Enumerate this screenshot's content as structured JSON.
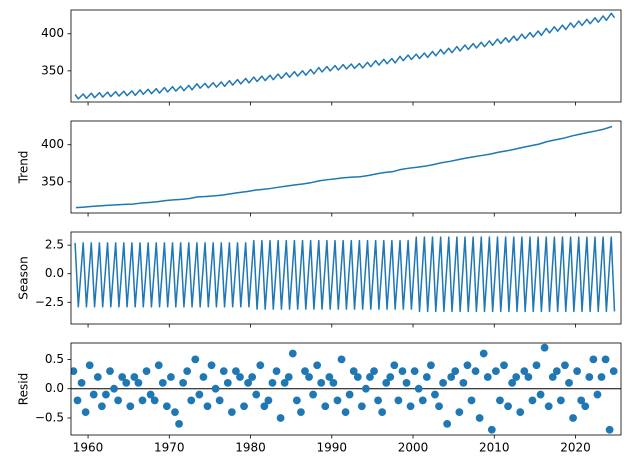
{
  "chart_data": [
    {
      "type": "line",
      "color": "#1f77b4",
      "xlim": [
        1957.9,
        2025.6
      ],
      "ylim": [
        308,
        432
      ],
      "yticks": [
        350,
        400
      ],
      "x": [
        1958.4,
        1958.8,
        1959.4,
        1959.8,
        1960.4,
        1960.8,
        1961.4,
        1961.8,
        1962.4,
        1962.8,
        1963.4,
        1963.8,
        1964.4,
        1964.8,
        1965.4,
        1965.8,
        1966.4,
        1966.8,
        1967.4,
        1967.8,
        1968.4,
        1968.8,
        1969.4,
        1969.8,
        1970.4,
        1970.8,
        1971.4,
        1971.8,
        1972.4,
        1972.8,
        1973.4,
        1973.8,
        1974.4,
        1974.8,
        1975.4,
        1975.8,
        1976.4,
        1976.8,
        1977.4,
        1977.8,
        1978.4,
        1978.8,
        1979.4,
        1979.8,
        1980.4,
        1980.8,
        1981.4,
        1981.8,
        1982.4,
        1982.8,
        1983.4,
        1983.8,
        1984.4,
        1984.8,
        1985.4,
        1985.8,
        1986.4,
        1986.8,
        1987.4,
        1987.8,
        1988.4,
        1988.8,
        1989.4,
        1989.8,
        1990.4,
        1990.8,
        1991.4,
        1991.8,
        1992.4,
        1992.8,
        1993.4,
        1993.8,
        1994.4,
        1994.8,
        1995.4,
        1995.8,
        1996.4,
        1996.8,
        1997.4,
        1997.8,
        1998.4,
        1998.8,
        1999.4,
        1999.8,
        2000.4,
        2000.8,
        2001.4,
        2001.8,
        2002.4,
        2002.8,
        2003.4,
        2003.8,
        2004.4,
        2004.8,
        2005.4,
        2005.8,
        2006.4,
        2006.8,
        2007.4,
        2007.8,
        2008.4,
        2008.8,
        2009.4,
        2009.8,
        2010.4,
        2010.8,
        2011.4,
        2011.8,
        2012.4,
        2012.8,
        2013.4,
        2013.8,
        2014.4,
        2014.8,
        2015.4,
        2015.8,
        2016.4,
        2016.8,
        2017.4,
        2017.8,
        2018.4,
        2018.8,
        2019.4,
        2019.8,
        2020.4,
        2020.8,
        2021.4,
        2021.8,
        2022.4,
        2022.8,
        2023.4,
        2023.8,
        2024.4,
        2024.8
      ],
      "values": [
        318.1,
        312.2,
        318.8,
        312.9,
        319.8,
        313.9,
        320.5,
        314.6,
        321.3,
        315.4,
        321.9,
        316.0,
        322.5,
        316.6,
        322.9,
        317.0,
        324.3,
        318.4,
        325.1,
        319.2,
        326.0,
        320.1,
        327.5,
        321.6,
        328.6,
        322.7,
        329.2,
        323.3,
        330.4,
        324.5,
        332.6,
        326.7,
        333.1,
        327.2,
        334.0,
        328.1,
        335.0,
        329.1,
        336.7,
        330.8,
        338.3,
        332.4,
        339.7,
        333.8,
        341.6,
        335.7,
        342.8,
        336.9,
        344.0,
        338.1,
        345.7,
        339.8,
        347.3,
        341.4,
        348.8,
        342.9,
        350.1,
        344.2,
        351.9,
        346.0,
        354.4,
        348.5,
        355.8,
        349.9,
        357.1,
        351.2,
        358.4,
        352.5,
        359.2,
        353.3,
        359.8,
        353.9,
        361.5,
        355.6,
        363.7,
        357.8,
        365.5,
        359.6,
        366.6,
        360.7,
        369.6,
        363.7,
        371.3,
        365.4,
        372.5,
        366.6,
        374.0,
        368.1,
        376.1,
        370.2,
        378.7,
        372.8,
        380.4,
        374.5,
        382.7,
        376.8,
        384.8,
        378.9,
        386.7,
        380.8,
        388.5,
        382.6,
        390.3,
        384.4,
        392.8,
        386.9,
        394.6,
        388.7,
        396.8,
        390.9,
        399.4,
        393.5,
        401.5,
        395.6,
        403.7,
        397.8,
        407.1,
        401.2,
        409.4,
        403.5,
        411.6,
        405.7,
        414.6,
        408.7,
        417.1,
        411.2,
        419.4,
        413.5,
        421.5,
        415.6,
        424.0,
        418.1,
        427.5,
        421.6
      ]
    },
    {
      "type": "line",
      "ylabel": "Trend",
      "color": "#1f77b4",
      "xlim": [
        1957.9,
        2025.6
      ],
      "ylim": [
        308,
        432
      ],
      "yticks": [
        350,
        400
      ],
      "x": [
        1958.5,
        1959.5,
        1960.5,
        1961.5,
        1962.5,
        1963.5,
        1964.5,
        1965.5,
        1966.5,
        1967.5,
        1968.5,
        1969.5,
        1970.5,
        1971.5,
        1972.5,
        1973.5,
        1974.5,
        1975.5,
        1976.5,
        1977.5,
        1978.5,
        1979.5,
        1980.5,
        1981.5,
        1982.5,
        1983.5,
        1984.5,
        1985.5,
        1986.5,
        1987.5,
        1988.5,
        1989.5,
        1990.5,
        1991.5,
        1992.5,
        1993.5,
        1994.5,
        1995.5,
        1996.5,
        1997.5,
        1998.5,
        1999.5,
        2000.5,
        2001.5,
        2002.5,
        2003.5,
        2004.5,
        2005.5,
        2006.5,
        2007.5,
        2008.5,
        2009.5,
        2010.5,
        2011.5,
        2012.5,
        2013.5,
        2014.5,
        2015.5,
        2016.5,
        2017.5,
        2018.5,
        2019.5,
        2020.5,
        2021.5,
        2022.5,
        2023.5,
        2024.5
      ],
      "values": [
        315.2,
        315.9,
        316.9,
        317.6,
        318.4,
        319.0,
        319.6,
        320.0,
        321.4,
        322.2,
        323.1,
        324.6,
        325.7,
        326.3,
        327.5,
        329.7,
        330.2,
        331.1,
        332.1,
        333.8,
        335.4,
        336.8,
        338.7,
        339.9,
        341.1,
        342.8,
        344.4,
        345.9,
        347.2,
        349.0,
        351.5,
        352.9,
        354.2,
        355.5,
        356.3,
        356.9,
        358.6,
        360.8,
        362.6,
        363.7,
        366.7,
        368.4,
        369.6,
        371.1,
        373.2,
        375.8,
        377.5,
        379.8,
        381.9,
        383.8,
        385.6,
        387.4,
        389.9,
        391.7,
        393.9,
        396.5,
        398.6,
        400.8,
        404.2,
        406.5,
        408.7,
        411.7,
        414.2,
        416.5,
        418.6,
        421.1,
        424.6
      ]
    },
    {
      "type": "line",
      "ylabel": "Season",
      "color": "#1f77b4",
      "xlim": [
        1957.9,
        2025.6
      ],
      "ylim": [
        -4.4,
        3.65
      ],
      "yticks": [
        {
          "value": -2.5,
          "label": "−2.5"
        },
        {
          "value": 0,
          "label": "0.0"
        },
        2.5
      ],
      "x": [
        1958.4,
        1958.8,
        1959.4,
        1959.8,
        1960.4,
        1960.8,
        1961.4,
        1961.8,
        1962.4,
        1962.8,
        1963.4,
        1963.8,
        1964.4,
        1964.8,
        1965.4,
        1965.8,
        1966.4,
        1966.8,
        1967.4,
        1967.8,
        1968.4,
        1968.8,
        1969.4,
        1969.8,
        1970.4,
        1970.8,
        1971.4,
        1971.8,
        1972.4,
        1972.8,
        1973.4,
        1973.8,
        1974.4,
        1974.8,
        1975.4,
        1975.8,
        1976.4,
        1976.8,
        1977.4,
        1977.8,
        1978.4,
        1978.8,
        1979.4,
        1979.8,
        1980.4,
        1980.8,
        1981.4,
        1981.8,
        1982.4,
        1982.8,
        1983.4,
        1983.8,
        1984.4,
        1984.8,
        1985.4,
        1985.8,
        1986.4,
        1986.8,
        1987.4,
        1987.8,
        1988.4,
        1988.8,
        1989.4,
        1989.8,
        1990.4,
        1990.8,
        1991.4,
        1991.8,
        1992.4,
        1992.8,
        1993.4,
        1993.8,
        1994.4,
        1994.8,
        1995.4,
        1995.8,
        1996.4,
        1996.8,
        1997.4,
        1997.8,
        1998.4,
        1998.8,
        1999.4,
        1999.8,
        2000.4,
        2000.8,
        2001.4,
        2001.8,
        2002.4,
        2002.8,
        2003.4,
        2003.8,
        2004.4,
        2004.8,
        2005.4,
        2005.8,
        2006.4,
        2006.8,
        2007.4,
        2007.8,
        2008.4,
        2008.8,
        2009.4,
        2009.8,
        2010.4,
        2010.8,
        2011.4,
        2011.8,
        2012.4,
        2012.8,
        2013.4,
        2013.8,
        2014.4,
        2014.8,
        2015.4,
        2015.8,
        2016.4,
        2016.8,
        2017.4,
        2017.8,
        2018.4,
        2018.8,
        2019.4,
        2019.8,
        2020.4,
        2020.8,
        2021.4,
        2021.8,
        2022.4,
        2022.8,
        2023.4,
        2023.8,
        2024.4,
        2024.8
      ],
      "values": [
        2.7,
        -2.9,
        2.7,
        -2.9,
        2.7,
        -2.9,
        2.7,
        -2.9,
        2.7,
        -2.9,
        2.7,
        -2.9,
        2.7,
        -2.9,
        2.7,
        -2.9,
        2.7,
        -2.9,
        2.7,
        -2.9,
        2.7,
        -2.9,
        2.7,
        -2.9,
        2.7,
        -2.9,
        2.7,
        -2.9,
        2.7,
        -2.9,
        2.7,
        -2.9,
        2.7,
        -2.9,
        2.7,
        -2.9,
        2.7,
        -2.9,
        2.7,
        -2.9,
        2.7,
        -2.9,
        2.7,
        -2.9,
        2.9,
        -3.1,
        2.9,
        -3.1,
        2.9,
        -3.1,
        2.9,
        -3.1,
        2.9,
        -3.1,
        2.9,
        -3.1,
        2.9,
        -3.1,
        2.9,
        -3.1,
        2.9,
        -3.1,
        2.9,
        -3.1,
        2.9,
        -3.1,
        2.9,
        -3.1,
        2.9,
        -3.1,
        2.9,
        -3.1,
        2.9,
        -3.1,
        2.9,
        -3.1,
        2.9,
        -3.1,
        2.9,
        -3.1,
        2.9,
        -3.1,
        2.9,
        -3.1,
        3.2,
        -3.3,
        3.2,
        -3.3,
        3.2,
        -3.3,
        3.2,
        -3.3,
        3.2,
        -3.3,
        3.2,
        -3.3,
        3.2,
        -3.3,
        3.2,
        -3.3,
        3.2,
        -3.3,
        3.2,
        -3.3,
        3.2,
        -3.3,
        3.2,
        -3.3,
        3.2,
        -3.3,
        3.2,
        -3.3,
        3.2,
        -3.3,
        3.2,
        -3.3,
        3.2,
        -3.3,
        3.2,
        -3.3,
        3.2,
        -3.3,
        3.2,
        -3.3,
        3.2,
        -3.3,
        3.2,
        -3.3,
        3.2,
        -3.3,
        3.2,
        -3.3,
        3.2,
        -3.3
      ]
    },
    {
      "type": "scatter",
      "ylabel": "Resid",
      "color": "#1f77b4",
      "xlim": [
        1957.9,
        2025.6
      ],
      "ylim": [
        -0.79,
        0.78
      ],
      "yticks": [
        {
          "value": -0.5,
          "label": "−0.5"
        },
        {
          "value": 0,
          "label": "0.0"
        },
        0.5
      ],
      "xticks": [
        1960,
        1970,
        1980,
        1990,
        2000,
        2010,
        2020
      ],
      "x": [
        1958.2,
        1958.7,
        1959.2,
        1959.7,
        1960.2,
        1960.7,
        1961.2,
        1961.7,
        1962.2,
        1962.7,
        1963.2,
        1963.7,
        1964.2,
        1964.7,
        1965.2,
        1965.7,
        1966.2,
        1966.7,
        1967.2,
        1967.7,
        1968.2,
        1968.7,
        1969.2,
        1969.7,
        1970.2,
        1970.7,
        1971.2,
        1971.7,
        1972.2,
        1972.7,
        1973.2,
        1973.7,
        1974.2,
        1974.7,
        1975.2,
        1975.7,
        1976.2,
        1976.7,
        1977.2,
        1977.7,
        1978.2,
        1978.7,
        1979.2,
        1979.7,
        1980.2,
        1980.7,
        1981.2,
        1981.7,
        1982.2,
        1982.7,
        1983.2,
        1983.7,
        1984.2,
        1984.7,
        1985.2,
        1985.7,
        1986.2,
        1986.7,
        1987.2,
        1987.7,
        1988.2,
        1988.7,
        1989.2,
        1989.7,
        1990.2,
        1990.7,
        1991.2,
        1991.7,
        1992.2,
        1992.7,
        1993.2,
        1993.7,
        1994.2,
        1994.7,
        1995.2,
        1995.7,
        1996.2,
        1996.7,
        1997.2,
        1997.7,
        1998.2,
        1998.7,
        1999.2,
        1999.7,
        2000.2,
        2000.7,
        2001.2,
        2001.7,
        2002.2,
        2002.7,
        2003.2,
        2003.7,
        2004.2,
        2004.7,
        2005.2,
        2005.7,
        2006.2,
        2006.7,
        2007.2,
        2007.7,
        2008.2,
        2008.7,
        2009.2,
        2009.7,
        2010.2,
        2010.7,
        2011.2,
        2011.7,
        2012.2,
        2012.7,
        2013.2,
        2013.7,
        2014.2,
        2014.7,
        2015.2,
        2015.7,
        2016.2,
        2016.7,
        2017.2,
        2017.7,
        2018.2,
        2018.7,
        2019.2,
        2019.7,
        2020.2,
        2020.7,
        2021.2,
        2021.7,
        2022.2,
        2022.7,
        2023.2,
        2023.7,
        2024.2,
        2024.7
      ],
      "values": [
        0.3,
        -0.2,
        0.1,
        -0.4,
        0.4,
        -0.1,
        0.2,
        -0.3,
        -0.1,
        0.3,
        0.0,
        -0.2,
        0.2,
        0.1,
        -0.3,
        0.2,
        0.1,
        -0.2,
        0.3,
        -0.1,
        -0.2,
        0.4,
        0.1,
        -0.3,
        0.2,
        -0.4,
        -0.6,
        0.1,
        0.3,
        -0.2,
        0.5,
        -0.1,
        0.2,
        -0.3,
        0.4,
        0.0,
        -0.2,
        0.3,
        0.1,
        -0.4,
        0.3,
        0.2,
        -0.3,
        0.1,
        0.2,
        -0.1,
        0.4,
        -0.3,
        -0.2,
        0.1,
        0.3,
        -0.5,
        0.1,
        0.2,
        0.6,
        -0.2,
        -0.4,
        0.3,
        0.2,
        -0.1,
        0.4,
        0.1,
        -0.3,
        0.2,
        0.1,
        -0.2,
        0.5,
        -0.4,
        -0.1,
        0.3,
        0.2,
        -0.3,
        0.0,
        0.2,
        0.3,
        -0.2,
        -0.4,
        0.1,
        0.2,
        0.4,
        -0.2,
        0.3,
        0.1,
        -0.3,
        0.3,
        0.0,
        -0.2,
        0.2,
        0.4,
        -0.1,
        -0.3,
        0.1,
        -0.6,
        0.2,
        0.3,
        -0.4,
        0.1,
        0.4,
        -0.2,
        0.3,
        -0.5,
        0.6,
        0.2,
        -0.7,
        0.3,
        -0.2,
        0.4,
        -0.3,
        0.1,
        0.2,
        -0.4,
        0.3,
        0.2,
        -0.2,
        0.4,
        -0.1,
        0.7,
        -0.3,
        0.2,
        0.3,
        -0.2,
        0.4,
        0.1,
        -0.5,
        0.3,
        -0.2,
        -0.3,
        0.2,
        0.5,
        -0.1,
        0.2,
        0.5,
        -0.7,
        0.3
      ]
    }
  ]
}
